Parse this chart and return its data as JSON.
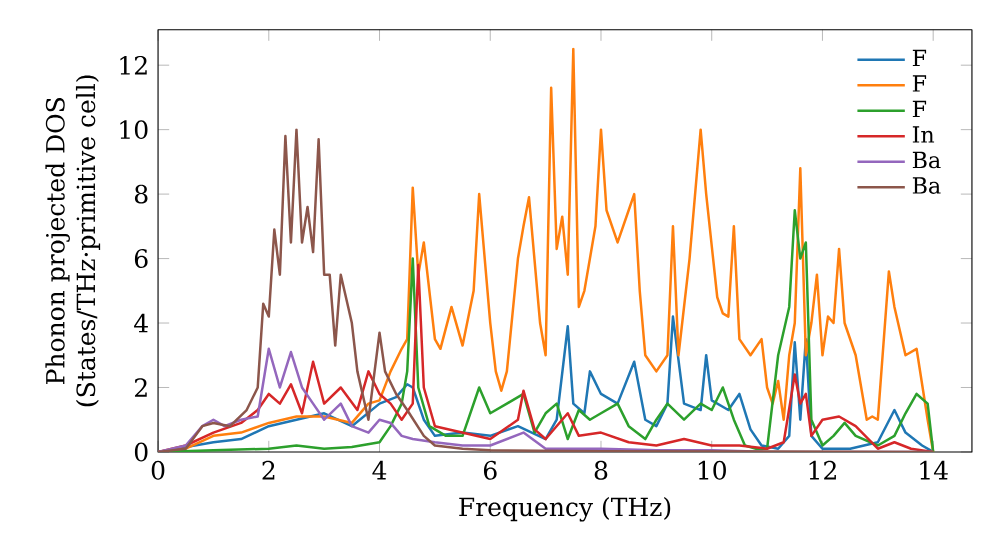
{
  "chart_data": {
    "type": "line",
    "xlabel": "Frequency (THz)",
    "ylabel": "Phonon projected DOS\n(States/THz·primitive cell)",
    "xlim": [
      0,
      14.7
    ],
    "ylim": [
      0,
      13.1
    ],
    "xticks": [
      0,
      2,
      4,
      6,
      8,
      10,
      12,
      14
    ],
    "yticks": [
      0,
      2,
      4,
      6,
      8,
      10,
      12
    ],
    "grid": false,
    "legend": "top right",
    "marker": "none",
    "line_style": "solid",
    "series": [
      {
        "name": "F",
        "color": "#1f77b4",
        "x": [
          0,
          1,
          1.5,
          2,
          2.5,
          3,
          3.5,
          4,
          4.3,
          4.5,
          4.6,
          4.8,
          5.0,
          5.5,
          6.0,
          6.5,
          7.0,
          7.2,
          7.4,
          7.5,
          7.7,
          7.8,
          8.0,
          8.3,
          8.6,
          8.8,
          9.0,
          9.2,
          9.3,
          9.5,
          9.8,
          9.9,
          10.0,
          10.3,
          10.5,
          10.7,
          10.9,
          11.2,
          11.4,
          11.5,
          11.6,
          11.7,
          11.8,
          12.0,
          12.5,
          13.0,
          13.3,
          13.5,
          13.8,
          14.0
        ],
        "values": [
          0,
          0.3,
          0.4,
          0.8,
          1.0,
          1.2,
          0.8,
          1.5,
          1.7,
          2.1,
          2.0,
          1.0,
          0.5,
          0.6,
          0.5,
          0.8,
          0.4,
          1.0,
          3.9,
          1.5,
          1.2,
          2.5,
          1.8,
          1.5,
          2.8,
          1.0,
          0.8,
          1.5,
          4.2,
          1.5,
          1.3,
          3.0,
          1.6,
          1.3,
          1.8,
          0.7,
          0.2,
          0.1,
          0.5,
          3.4,
          1.0,
          3.5,
          0.5,
          0.1,
          0.1,
          0.3,
          1.3,
          0.6,
          0.2,
          0
        ]
      },
      {
        "name": "F",
        "color": "#ff7f0e",
        "x": [
          0,
          0.5,
          1,
          1.5,
          2,
          2.5,
          3,
          3.5,
          3.8,
          4.0,
          4.2,
          4.4,
          4.5,
          4.6,
          4.7,
          4.8,
          5.0,
          5.1,
          5.3,
          5.5,
          5.7,
          5.8,
          5.9,
          6.0,
          6.1,
          6.2,
          6.3,
          6.5,
          6.6,
          6.7,
          6.9,
          7.0,
          7.1,
          7.2,
          7.3,
          7.4,
          7.5,
          7.6,
          7.7,
          7.9,
          8.0,
          8.1,
          8.3,
          8.5,
          8.6,
          8.7,
          8.8,
          9.0,
          9.2,
          9.3,
          9.4,
          9.6,
          9.8,
          9.9,
          10.1,
          10.2,
          10.3,
          10.4,
          10.5,
          10.7,
          10.9,
          11.0,
          11.1,
          11.2,
          11.3,
          11.4,
          11.5,
          11.6,
          11.7,
          11.8,
          11.9,
          12.0,
          12.1,
          12.2,
          12.3,
          12.4,
          12.6,
          12.8,
          12.9,
          13.0,
          13.2,
          13.3,
          13.5,
          13.7,
          13.9,
          14.0
        ],
        "values": [
          0,
          0.1,
          0.5,
          0.6,
          0.9,
          1.1,
          1.1,
          0.9,
          1.5,
          1.6,
          2.5,
          3.2,
          3.5,
          8.2,
          5.5,
          6.5,
          3.5,
          3.2,
          4.5,
          3.3,
          5.0,
          8.0,
          6.0,
          4.0,
          2.5,
          1.9,
          2.5,
          6.0,
          7.0,
          7.9,
          4.0,
          3.0,
          11.3,
          6.3,
          7.3,
          5.5,
          12.5,
          4.5,
          5.0,
          7.0,
          10.0,
          7.5,
          6.5,
          7.5,
          8.0,
          5.0,
          3.0,
          2.5,
          3.0,
          7.0,
          3.0,
          6.0,
          10.0,
          8.0,
          4.8,
          4.3,
          4.2,
          7.0,
          3.5,
          3.0,
          3.5,
          2.0,
          1.5,
          2.2,
          1.0,
          3.0,
          4.0,
          8.8,
          3.0,
          4.0,
          5.5,
          3.0,
          4.2,
          4.0,
          6.3,
          4.0,
          3.0,
          1.0,
          1.1,
          1.0,
          5.6,
          4.5,
          3.0,
          3.2,
          1.0,
          0
        ]
      },
      {
        "name": "F",
        "color": "#2ca02c",
        "x": [
          0,
          1,
          2,
          2.5,
          3,
          3.5,
          4,
          4.2,
          4.4,
          4.5,
          4.6,
          4.7,
          4.9,
          5.2,
          5.5,
          5.8,
          6.0,
          6.3,
          6.6,
          6.8,
          7.0,
          7.2,
          7.4,
          7.6,
          7.8,
          8.0,
          8.3,
          8.5,
          8.8,
          9.0,
          9.2,
          9.5,
          9.8,
          10.0,
          10.2,
          10.4,
          10.6,
          10.8,
          11.0,
          11.2,
          11.4,
          11.5,
          11.6,
          11.7,
          11.8,
          12.0,
          12.2,
          12.4,
          12.6,
          13.0,
          13.3,
          13.5,
          13.7,
          13.9,
          14.0
        ],
        "values": [
          0,
          0.05,
          0.1,
          0.2,
          0.1,
          0.15,
          0.3,
          0.8,
          1.5,
          2.5,
          6.0,
          2.0,
          0.8,
          0.5,
          0.5,
          2.0,
          1.2,
          1.5,
          1.8,
          0.6,
          1.2,
          1.5,
          0.4,
          1.3,
          1.0,
          1.2,
          1.5,
          0.8,
          0.4,
          1.0,
          1.5,
          1.0,
          1.5,
          1.3,
          2.0,
          1.0,
          0.2,
          0.1,
          0.1,
          3.0,
          4.5,
          7.5,
          6.0,
          6.5,
          1.0,
          0.2,
          0.5,
          0.9,
          0.5,
          0.2,
          0.5,
          1.2,
          1.8,
          1.5,
          0
        ]
      },
      {
        "name": "In",
        "color": "#d62728",
        "x": [
          0,
          0.5,
          1,
          1.5,
          1.8,
          2,
          2.2,
          2.4,
          2.6,
          2.8,
          3.0,
          3.3,
          3.6,
          3.8,
          4,
          4.2,
          4.4,
          4.6,
          4.7,
          4.8,
          5.0,
          5.5,
          6.0,
          6.5,
          6.6,
          6.8,
          7.0,
          7.4,
          7.6,
          8.0,
          8.5,
          9.0,
          9.5,
          10.0,
          10.5,
          11.0,
          11.3,
          11.5,
          11.6,
          11.7,
          11.8,
          12.0,
          12.3,
          12.6,
          13.0,
          13.3,
          13.6,
          14.0
        ],
        "values": [
          0,
          0.2,
          0.6,
          0.9,
          1.3,
          1.8,
          1.5,
          2.1,
          1.2,
          2.8,
          1.5,
          2.0,
          1.3,
          2.5,
          1.8,
          1.5,
          1.0,
          1.5,
          5.8,
          2.0,
          0.8,
          0.6,
          0.4,
          1.0,
          1.9,
          0.7,
          0.4,
          1.2,
          0.5,
          0.6,
          0.3,
          0.2,
          0.4,
          0.2,
          0.2,
          0.1,
          0.3,
          2.4,
          1.5,
          1.8,
          0.5,
          1.0,
          1.1,
          0.8,
          0.1,
          0.3,
          0.1,
          0
        ]
      },
      {
        "name": "Ba",
        "color": "#9467bd",
        "x": [
          0,
          0.5,
          0.8,
          1.0,
          1.2,
          1.5,
          1.8,
          2.0,
          2.2,
          2.4,
          2.6,
          2.8,
          3.0,
          3.3,
          3.5,
          3.8,
          4.0,
          4.2,
          4.4,
          4.6,
          5.0,
          5.5,
          6.0,
          6.6,
          7.0,
          8.0,
          9.0,
          10,
          11,
          12,
          14
        ],
        "values": [
          0,
          0.2,
          0.8,
          1.0,
          0.8,
          1.0,
          1.1,
          3.2,
          2.0,
          3.1,
          2.0,
          1.5,
          1.0,
          1.5,
          0.8,
          0.6,
          1.0,
          0.9,
          0.5,
          0.4,
          0.3,
          0.2,
          0.2,
          0.6,
          0.1,
          0.1,
          0.05,
          0.05,
          0,
          0,
          0
        ]
      },
      {
        "name": "Ba",
        "color": "#8c564b",
        "x": [
          0,
          0.5,
          0.8,
          1.0,
          1.3,
          1.6,
          1.8,
          1.9,
          2.0,
          2.1,
          2.2,
          2.3,
          2.4,
          2.5,
          2.6,
          2.7,
          2.8,
          2.9,
          3.0,
          3.1,
          3.2,
          3.3,
          3.5,
          3.6,
          3.8,
          4.0,
          4.1,
          4.3,
          4.5,
          4.8,
          5.0,
          5.5,
          6.0,
          8,
          14
        ],
        "values": [
          0,
          0.1,
          0.8,
          0.9,
          0.8,
          1.3,
          2.0,
          4.6,
          4.2,
          6.9,
          5.5,
          9.8,
          6.5,
          10.0,
          6.5,
          7.6,
          6.2,
          9.7,
          5.5,
          5.5,
          3.3,
          5.5,
          4.0,
          2.5,
          1.0,
          3.7,
          2.5,
          1.8,
          1.3,
          0.5,
          0.2,
          0.1,
          0.05,
          0.02,
          0
        ]
      }
    ]
  }
}
